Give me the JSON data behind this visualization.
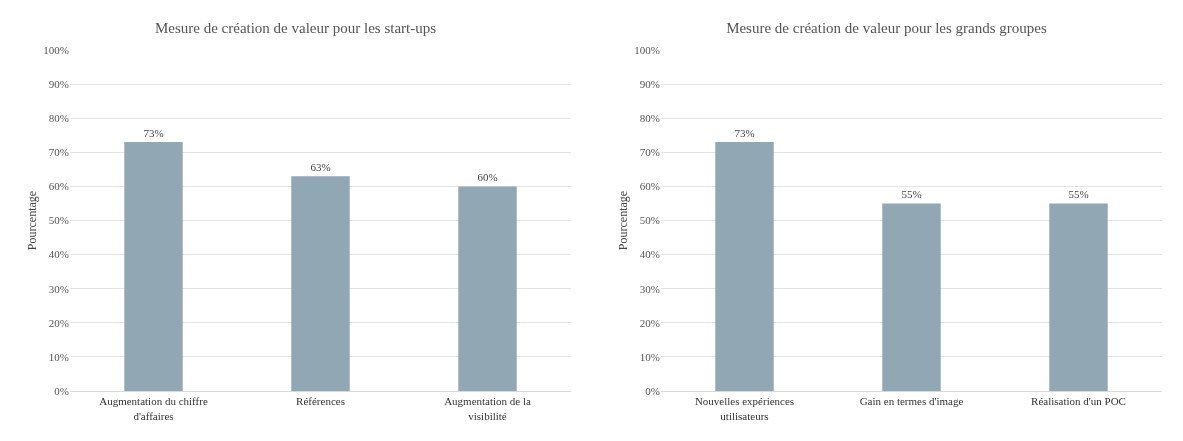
{
  "chart_data": [
    {
      "type": "bar",
      "title": "Mesure de création de valeur pour les start-ups",
      "ylabel": "Pourcentage",
      "categories": [
        "Augmentation du chiffre d'affaires",
        "Références",
        "Augmentation de la visibilité"
      ],
      "values": [
        73,
        63,
        60
      ],
      "value_labels": [
        "73%",
        "63%",
        "60%"
      ],
      "color": "#91a7b4",
      "ylim": [
        0,
        100
      ],
      "yticks": [
        {
          "value": 0,
          "label": "0%"
        },
        {
          "value": 10,
          "label": "10%"
        },
        {
          "value": 20,
          "label": "20%"
        },
        {
          "value": 30,
          "label": "30%"
        },
        {
          "value": 40,
          "label": "40%"
        },
        {
          "value": 50,
          "label": "50%"
        },
        {
          "value": 60,
          "label": "60%"
        },
        {
          "value": 70,
          "label": "70%"
        },
        {
          "value": 80,
          "label": "80%"
        },
        {
          "value": 90,
          "label": "90%"
        },
        {
          "value": 100,
          "label": "100%"
        }
      ],
      "grid": "y",
      "legend": false
    },
    {
      "type": "bar",
      "title": "Mesure de création de valeur pour les grands groupes",
      "ylabel": "Pourcentage",
      "categories": [
        "Nouvelles expériences utilisateurs",
        "Gain en termes d'image",
        "Réalisation d'un POC"
      ],
      "values": [
        73,
        55,
        55
      ],
      "value_labels": [
        "73%",
        "55%",
        "55%"
      ],
      "color": "#91a7b4",
      "ylim": [
        0,
        100
      ],
      "yticks": [
        {
          "value": 0,
          "label": "0%"
        },
        {
          "value": 10,
          "label": "10%"
        },
        {
          "value": 20,
          "label": "20%"
        },
        {
          "value": 30,
          "label": "30%"
        },
        {
          "value": 40,
          "label": "40%"
        },
        {
          "value": 50,
          "label": "50%"
        },
        {
          "value": 60,
          "label": "60%"
        },
        {
          "value": 70,
          "label": "70%"
        },
        {
          "value": 80,
          "label": "80%"
        },
        {
          "value": 90,
          "label": "90%"
        },
        {
          "value": 100,
          "label": "100%"
        }
      ],
      "grid": "y",
      "legend": false
    }
  ]
}
